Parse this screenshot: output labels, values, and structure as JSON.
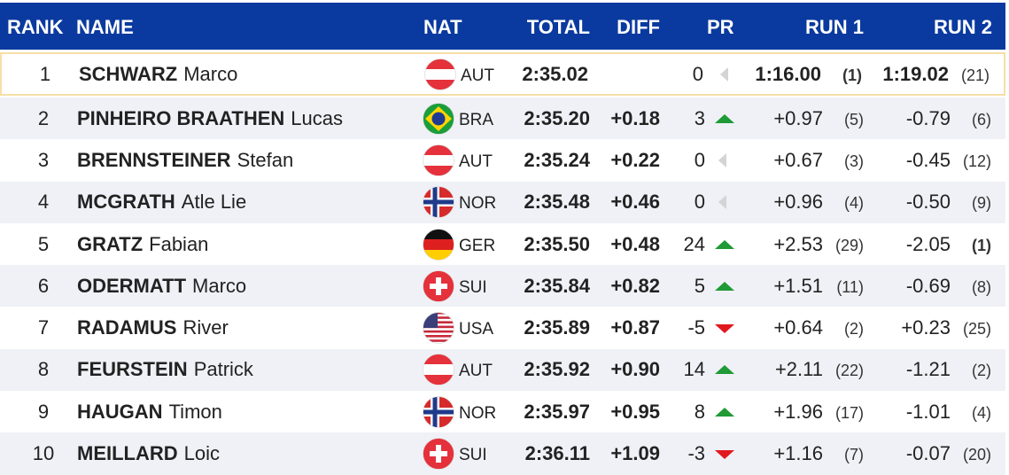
{
  "header": {
    "rank": "RANK",
    "name": "NAME",
    "nat": "NAT",
    "total": "TOTAL",
    "diff": "DIFF",
    "pr": "PR",
    "run1": "RUN 1",
    "run2": "RUN 2"
  },
  "table": {
    "rows": [
      {
        "rank": 1,
        "surname": "SCHWARZ",
        "firstname": "Marco",
        "nat": "AUT",
        "total": "2:35.02",
        "diff": null,
        "pr": 0,
        "run1": "1:16.00",
        "run1_rank": "(1)",
        "run2": "1:19.02",
        "run2_rank": "(21)"
      },
      {
        "rank": 2,
        "surname": "PINHEIRO BRAATHEN",
        "firstname": "Lucas",
        "nat": "BRA",
        "total": "2:35.20",
        "diff": "+0.18",
        "pr": 3,
        "run1": "+0.97",
        "run1_rank": "(5)",
        "run2": "-0.79",
        "run2_rank": "(6)"
      },
      {
        "rank": 3,
        "surname": "BRENNSTEINER",
        "firstname": "Stefan",
        "nat": "AUT",
        "total": "2:35.24",
        "diff": "+0.22",
        "pr": 0,
        "run1": "+0.67",
        "run1_rank": "(3)",
        "run2": "-0.45",
        "run2_rank": "(12)"
      },
      {
        "rank": 4,
        "surname": "MCGRATH",
        "firstname": "Atle Lie",
        "nat": "NOR",
        "total": "2:35.48",
        "diff": "+0.46",
        "pr": 0,
        "run1": "+0.96",
        "run1_rank": "(4)",
        "run2": "-0.50",
        "run2_rank": "(9)"
      },
      {
        "rank": 5,
        "surname": "GRATZ",
        "firstname": "Fabian",
        "nat": "GER",
        "total": "2:35.50",
        "diff": "+0.48",
        "pr": 24,
        "run1": "+2.53",
        "run1_rank": "(29)",
        "run2": "-2.05",
        "run2_rank": "(1)"
      },
      {
        "rank": 6,
        "surname": "ODERMATT",
        "firstname": "Marco",
        "nat": "SUI",
        "total": "2:35.84",
        "diff": "+0.82",
        "pr": 5,
        "run1": "+1.51",
        "run1_rank": "(11)",
        "run2": "-0.69",
        "run2_rank": "(8)"
      },
      {
        "rank": 7,
        "surname": "RADAMUS",
        "firstname": "River",
        "nat": "USA",
        "total": "2:35.89",
        "diff": "+0.87",
        "pr": -5,
        "run1": "+0.64",
        "run1_rank": "(2)",
        "run2": "+0.23",
        "run2_rank": "(25)"
      },
      {
        "rank": 8,
        "surname": "FEURSTEIN",
        "firstname": "Patrick",
        "nat": "AUT",
        "total": "2:35.92",
        "diff": "+0.90",
        "pr": 14,
        "run1": "+2.11",
        "run1_rank": "(22)",
        "run2": "-1.21",
        "run2_rank": "(2)"
      },
      {
        "rank": 9,
        "surname": "HAUGAN",
        "firstname": "Timon",
        "nat": "NOR",
        "total": "2:35.97",
        "diff": "+0.95",
        "pr": 8,
        "run1": "+1.96",
        "run1_rank": "(17)",
        "run2": "-1.01",
        "run2_rank": "(4)"
      },
      {
        "rank": 10,
        "surname": "MEILLARD",
        "firstname": "Loic",
        "nat": "SUI",
        "total": "2:36.11",
        "diff": "+1.09",
        "pr": -3,
        "run1": "+1.16",
        "run1_rank": "(7)",
        "run2": "-0.07",
        "run2_rank": "(20)"
      }
    ]
  }
}
